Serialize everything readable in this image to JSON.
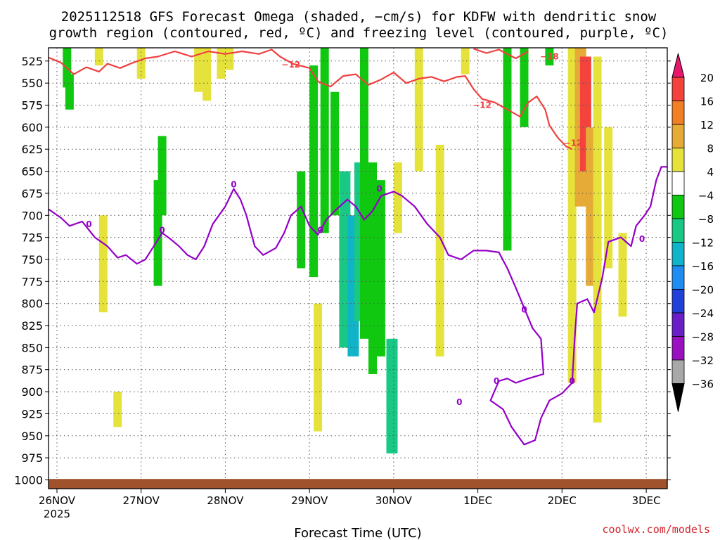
{
  "chart_data": {
    "type": "time-height",
    "title_line1": "2025112518 GFS Forecast Omega (shaded, −cm/s) for KDFW with dendritic snow",
    "title_line2": "growth region (contoured, red, ºC) and freezing level (contoured, purple, ºC)",
    "xlabel": "Forecast Time (UTC)",
    "credit": "coolwx.com/models",
    "x_ticks": [
      {
        "label": "26NOV",
        "sub": "2025",
        "day": 0
      },
      {
        "label": "27NOV",
        "sub": "",
        "day": 1
      },
      {
        "label": "28NOV",
        "sub": "",
        "day": 2
      },
      {
        "label": "29NOV",
        "sub": "",
        "day": 3
      },
      {
        "label": "30NOV",
        "sub": "",
        "day": 4
      },
      {
        "label": "1DEC",
        "sub": "",
        "day": 5
      },
      {
        "label": "2DEC",
        "sub": "",
        "day": 6
      },
      {
        "label": "3DEC",
        "sub": "",
        "day": 7
      }
    ],
    "x_range_days": [
      -0.1,
      7.25
    ],
    "y_ticks": [
      525,
      550,
      575,
      600,
      625,
      650,
      675,
      700,
      725,
      750,
      775,
      800,
      825,
      850,
      875,
      900,
      925,
      950,
      975,
      1000
    ],
    "y_range_hpa": [
      510,
      1010
    ],
    "colorbar": {
      "labels": [
        "20",
        "16",
        "12",
        "8",
        "4",
        "−4",
        "−8",
        "−12",
        "−16",
        "−20",
        "−24",
        "−28",
        "−32",
        "−36"
      ],
      "colors_top_to_bottom": [
        "#e8176b",
        "#f4423c",
        "#f07f26",
        "#e6aa36",
        "#e6e23c",
        "#ffffff",
        "#10c810",
        "#18c884",
        "#10b4c8",
        "#1e8cf0",
        "#2040d8",
        "#6a1ec8",
        "#9a10c0",
        "#a8a8a8",
        "#000000"
      ]
    },
    "series": [
      {
        "name": "Freezing level (0 ºC)",
        "color": "#9400c8",
        "label": "0",
        "label_points": [
          [
            0.38,
            710
          ],
          [
            1.25,
            717
          ],
          [
            2.1,
            665
          ],
          [
            3.13,
            717
          ],
          [
            3.83,
            670
          ],
          [
            5.55,
            807
          ],
          [
            5.22,
            888
          ],
          [
            6.12,
            888
          ],
          [
            6.95,
            727
          ],
          [
            4.78,
            912
          ]
        ],
        "points": [
          [
            -0.1,
            693
          ],
          [
            0.05,
            703
          ],
          [
            0.15,
            712
          ],
          [
            0.3,
            707
          ],
          [
            0.45,
            725
          ],
          [
            0.6,
            735
          ],
          [
            0.72,
            748
          ],
          [
            0.82,
            745
          ],
          [
            0.95,
            755
          ],
          [
            1.05,
            750
          ],
          [
            1.15,
            735
          ],
          [
            1.25,
            720
          ],
          [
            1.35,
            727
          ],
          [
            1.45,
            735
          ],
          [
            1.55,
            745
          ],
          [
            1.65,
            750
          ],
          [
            1.75,
            735
          ],
          [
            1.85,
            710
          ],
          [
            2.0,
            690
          ],
          [
            2.1,
            670
          ],
          [
            2.18,
            682
          ],
          [
            2.25,
            700
          ],
          [
            2.35,
            735
          ],
          [
            2.45,
            745
          ],
          [
            2.6,
            737
          ],
          [
            2.7,
            720
          ],
          [
            2.78,
            700
          ],
          [
            2.9,
            690
          ],
          [
            3.0,
            712
          ],
          [
            3.1,
            722
          ],
          [
            3.2,
            705
          ],
          [
            3.3,
            695
          ],
          [
            3.45,
            682
          ],
          [
            3.55,
            690
          ],
          [
            3.65,
            705
          ],
          [
            3.75,
            695
          ],
          [
            3.85,
            678
          ],
          [
            4.0,
            673
          ],
          [
            4.1,
            678
          ],
          [
            4.25,
            690
          ],
          [
            4.4,
            710
          ],
          [
            4.55,
            725
          ],
          [
            4.65,
            745
          ],
          [
            4.8,
            750
          ],
          [
            4.95,
            740
          ],
          [
            5.1,
            740
          ],
          [
            5.25,
            742
          ],
          [
            5.35,
            760
          ],
          [
            5.45,
            782
          ],
          [
            5.55,
            805
          ],
          [
            5.65,
            828
          ],
          [
            5.75,
            840
          ],
          [
            5.78,
            880
          ],
          [
            5.6,
            885
          ],
          [
            5.45,
            890
          ],
          [
            5.35,
            885
          ],
          [
            5.25,
            888
          ],
          [
            5.15,
            910
          ],
          [
            5.3,
            920
          ],
          [
            5.4,
            940
          ],
          [
            5.55,
            960
          ],
          [
            5.68,
            955
          ],
          [
            5.75,
            930
          ],
          [
            5.85,
            910
          ],
          [
            6.0,
            902
          ],
          [
            6.12,
            890
          ],
          [
            6.15,
            840
          ],
          [
            6.18,
            800
          ],
          [
            6.3,
            795
          ],
          [
            6.38,
            810
          ],
          [
            6.48,
            770
          ],
          [
            6.55,
            730
          ],
          [
            6.7,
            725
          ],
          [
            6.82,
            735
          ],
          [
            6.88,
            712
          ],
          [
            6.98,
            700
          ],
          [
            7.05,
            690
          ],
          [
            7.12,
            660
          ],
          [
            7.18,
            645
          ],
          [
            7.25,
            645
          ]
        ]
      },
      {
        "name": "Dendritic snow growth (−12 ºC)",
        "color": "#f04040",
        "label": "−12",
        "label_points": [
          [
            2.78,
            529
          ],
          [
            5.05,
            575
          ],
          [
            6.13,
            618
          ]
        ],
        "points": [
          [
            -0.1,
            521
          ],
          [
            0.05,
            527
          ],
          [
            0.2,
            540
          ],
          [
            0.35,
            532
          ],
          [
            0.5,
            537
          ],
          [
            0.6,
            528
          ],
          [
            0.75,
            533
          ],
          [
            0.9,
            527
          ],
          [
            1.05,
            522
          ],
          [
            1.2,
            520
          ],
          [
            1.4,
            514
          ],
          [
            1.6,
            520
          ],
          [
            1.8,
            514
          ],
          [
            2.0,
            517
          ],
          [
            2.2,
            514
          ],
          [
            2.4,
            517
          ],
          [
            2.55,
            512
          ],
          [
            2.65,
            520
          ],
          [
            2.8,
            528
          ],
          [
            3.0,
            533
          ],
          [
            3.1,
            548
          ],
          [
            3.25,
            554
          ],
          [
            3.4,
            542
          ],
          [
            3.55,
            540
          ],
          [
            3.7,
            552
          ],
          [
            3.85,
            546
          ],
          [
            4.0,
            538
          ],
          [
            4.15,
            550
          ],
          [
            4.3,
            545
          ],
          [
            4.45,
            543
          ],
          [
            4.6,
            548
          ],
          [
            4.75,
            543
          ],
          [
            4.85,
            542
          ],
          [
            4.95,
            557
          ],
          [
            5.05,
            568
          ],
          [
            5.2,
            572
          ],
          [
            5.35,
            580
          ],
          [
            5.5,
            588
          ],
          [
            5.6,
            572
          ],
          [
            5.7,
            565
          ],
          [
            5.8,
            580
          ],
          [
            5.85,
            598
          ],
          [
            5.95,
            612
          ],
          [
            6.05,
            622
          ],
          [
            6.12,
            625
          ]
        ]
      },
      {
        "name": "Dendritic snow growth upper (−18 ºC)",
        "color": "#f04040",
        "label": "−18",
        "label_points": [
          [
            5.85,
            520
          ]
        ],
        "points": [
          [
            4.95,
            511
          ],
          [
            5.1,
            516
          ],
          [
            5.25,
            512
          ],
          [
            5.45,
            522
          ],
          [
            5.6,
            514
          ]
        ]
      }
    ],
    "shading": [
      {
        "day": 0.12,
        "top": 510,
        "bottom": 555,
        "value": -6
      },
      {
        "day": 0.15,
        "top": 540,
        "bottom": 580,
        "value": -5
      },
      {
        "day": 0.5,
        "top": 510,
        "bottom": 530,
        "value": 5
      },
      {
        "day": 0.55,
        "top": 700,
        "bottom": 810,
        "value": 5
      },
      {
        "day": 0.72,
        "top": 900,
        "bottom": 940,
        "value": 5
      },
      {
        "day": 1.0,
        "top": 510,
        "bottom": 545,
        "value": 5
      },
      {
        "day": 1.2,
        "top": 660,
        "bottom": 780,
        "value": -6
      },
      {
        "day": 1.25,
        "top": 610,
        "bottom": 700,
        "value": -5
      },
      {
        "day": 1.68,
        "top": 510,
        "bottom": 560,
        "value": 5
      },
      {
        "day": 1.78,
        "top": 510,
        "bottom": 570,
        "value": 6
      },
      {
        "day": 1.95,
        "top": 510,
        "bottom": 545,
        "value": 5
      },
      {
        "day": 2.05,
        "top": 510,
        "bottom": 535,
        "value": 5
      },
      {
        "day": 2.9,
        "top": 650,
        "bottom": 760,
        "value": -6
      },
      {
        "day": 3.05,
        "top": 530,
        "bottom": 770,
        "value": -7
      },
      {
        "day": 3.1,
        "top": 800,
        "bottom": 945,
        "value": 6
      },
      {
        "day": 3.18,
        "top": 510,
        "bottom": 720,
        "value": -6
      },
      {
        "day": 3.3,
        "top": 560,
        "bottom": 700,
        "value": -7
      },
      {
        "day": 3.42,
        "top": 650,
        "bottom": 850,
        "value": -9
      },
      {
        "day": 3.52,
        "top": 700,
        "bottom": 860,
        "value": -14
      },
      {
        "day": 3.6,
        "top": 640,
        "bottom": 820,
        "value": -8
      },
      {
        "day": 3.65,
        "top": 510,
        "bottom": 840,
        "value": -7
      },
      {
        "day": 3.75,
        "top": 640,
        "bottom": 880,
        "value": -6
      },
      {
        "day": 3.85,
        "top": 660,
        "bottom": 860,
        "value": -6
      },
      {
        "day": 3.98,
        "top": 840,
        "bottom": 970,
        "value": -10
      },
      {
        "day": 4.05,
        "top": 640,
        "bottom": 720,
        "value": 5
      },
      {
        "day": 4.3,
        "top": 510,
        "bottom": 650,
        "value": 5
      },
      {
        "day": 4.55,
        "top": 620,
        "bottom": 860,
        "value": 5
      },
      {
        "day": 4.85,
        "top": 510,
        "bottom": 540,
        "value": 5
      },
      {
        "day": 5.35,
        "top": 510,
        "bottom": 740,
        "value": -6
      },
      {
        "day": 5.55,
        "top": 510,
        "bottom": 600,
        "value": -6
      },
      {
        "day": 5.85,
        "top": 510,
        "bottom": 530,
        "value": -7
      },
      {
        "day": 6.12,
        "top": 510,
        "bottom": 890,
        "value": 5
      },
      {
        "day": 6.22,
        "top": 510,
        "bottom": 690,
        "value": 10
      },
      {
        "day": 6.28,
        "top": 520,
        "bottom": 650,
        "value": 18
      },
      {
        "day": 6.35,
        "top": 600,
        "bottom": 780,
        "value": 9
      },
      {
        "day": 6.42,
        "top": 520,
        "bottom": 935,
        "value": 5
      },
      {
        "day": 6.55,
        "top": 600,
        "bottom": 760,
        "value": 5
      },
      {
        "day": 6.72,
        "top": 720,
        "bottom": 815,
        "value": 5
      }
    ]
  }
}
